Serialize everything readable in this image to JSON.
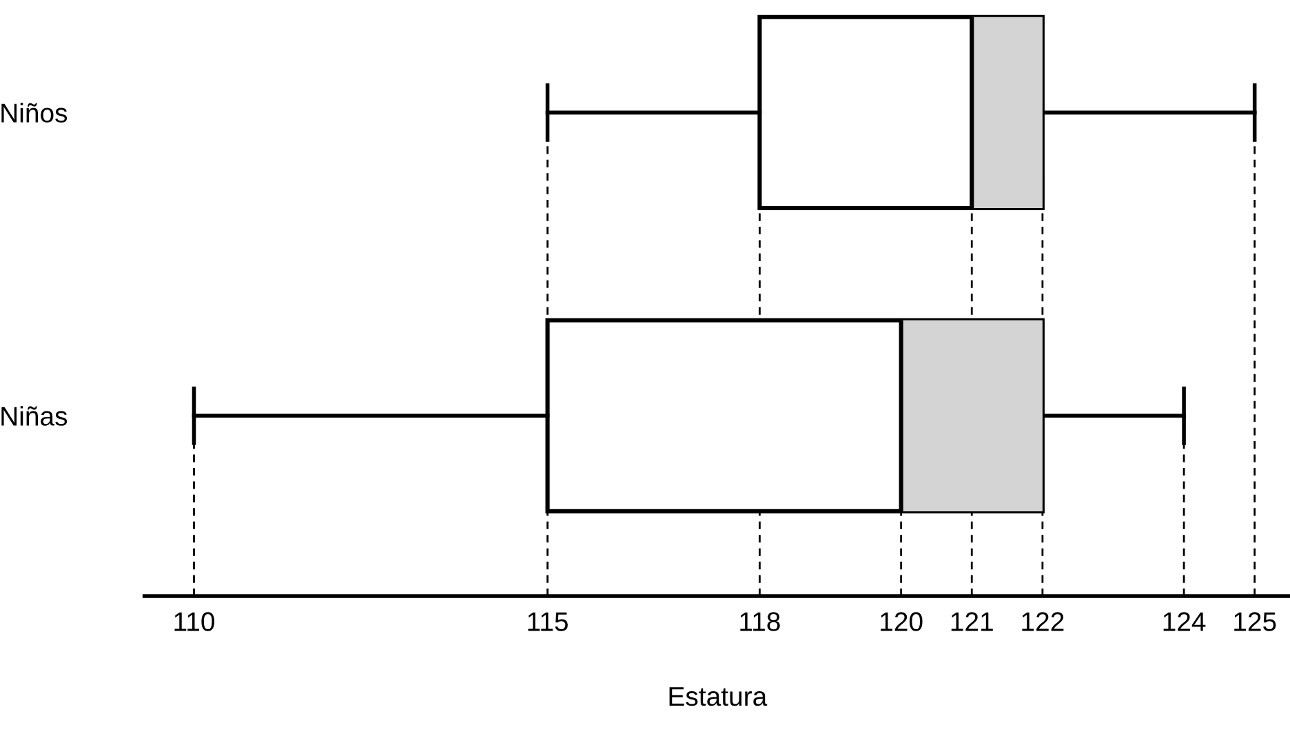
{
  "chart_data": {
    "type": "box",
    "orientation": "horizontal",
    "xlabel": "Estatura",
    "categories": [
      "Niños",
      "Niñas"
    ],
    "boxes": [
      {
        "low": 115,
        "q1": 118,
        "median": 121,
        "q3": 122,
        "high": 125
      },
      {
        "low": 110,
        "q1": 115,
        "median": 120,
        "q3": 122,
        "high": 124
      }
    ],
    "xlim": [
      109.3,
      125.5
    ],
    "xticks": [
      110,
      115,
      118,
      120,
      121,
      122,
      124,
      125
    ],
    "ref_lines": [
      {
        "axis": "x",
        "value": 110,
        "line_style": "dashed",
        "color": "#000000"
      },
      {
        "axis": "x",
        "value": 115,
        "line_style": "dashed",
        "color": "#000000"
      },
      {
        "axis": "x",
        "value": 118,
        "line_style": "dashed",
        "color": "#000000"
      },
      {
        "axis": "x",
        "value": 120,
        "line_style": "dashed",
        "color": "#000000"
      },
      {
        "axis": "x",
        "value": 121,
        "line_style": "dashed",
        "color": "#000000"
      },
      {
        "axis": "x",
        "value": 122,
        "line_style": "dashed",
        "color": "#000000"
      },
      {
        "axis": "x",
        "value": 124,
        "line_style": "dashed",
        "color": "#000000"
      },
      {
        "axis": "x",
        "value": 125,
        "line_style": "dashed",
        "color": "#000000"
      }
    ],
    "grid": false,
    "legend": false
  }
}
